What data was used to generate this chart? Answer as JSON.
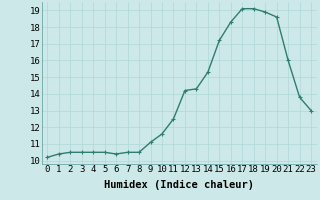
{
  "x": [
    0,
    1,
    2,
    3,
    4,
    5,
    6,
    7,
    8,
    9,
    10,
    11,
    12,
    13,
    14,
    15,
    16,
    17,
    18,
    19,
    20,
    21,
    22,
    23
  ],
  "y": [
    10.2,
    10.4,
    10.5,
    10.5,
    10.5,
    10.5,
    10.4,
    10.5,
    10.5,
    11.1,
    11.6,
    12.5,
    14.2,
    14.3,
    15.3,
    17.2,
    18.3,
    19.1,
    19.1,
    18.9,
    18.6,
    16.0,
    13.8,
    13.0
  ],
  "line_color": "#2e7d6e",
  "marker": "+",
  "marker_size": 3,
  "xlabel": "Humidex (Indice chaleur)",
  "xlim": [
    -0.5,
    23.5
  ],
  "ylim": [
    9.8,
    19.5
  ],
  "bg_color": "#cde8e8",
  "grid_color": "#b0d8d8",
  "xtick_labels": [
    "0",
    "1",
    "2",
    "3",
    "4",
    "5",
    "6",
    "7",
    "8",
    "9",
    "10",
    "11",
    "12",
    "13",
    "14",
    "15",
    "16",
    "17",
    "18",
    "19",
    "20",
    "21",
    "22",
    "23"
  ],
  "ytick_values": [
    10,
    11,
    12,
    13,
    14,
    15,
    16,
    17,
    18,
    19
  ],
  "xlabel_fontsize": 7.5,
  "tick_fontsize": 6.5,
  "line_width": 1.0,
  "marker_edge_width": 0.8
}
